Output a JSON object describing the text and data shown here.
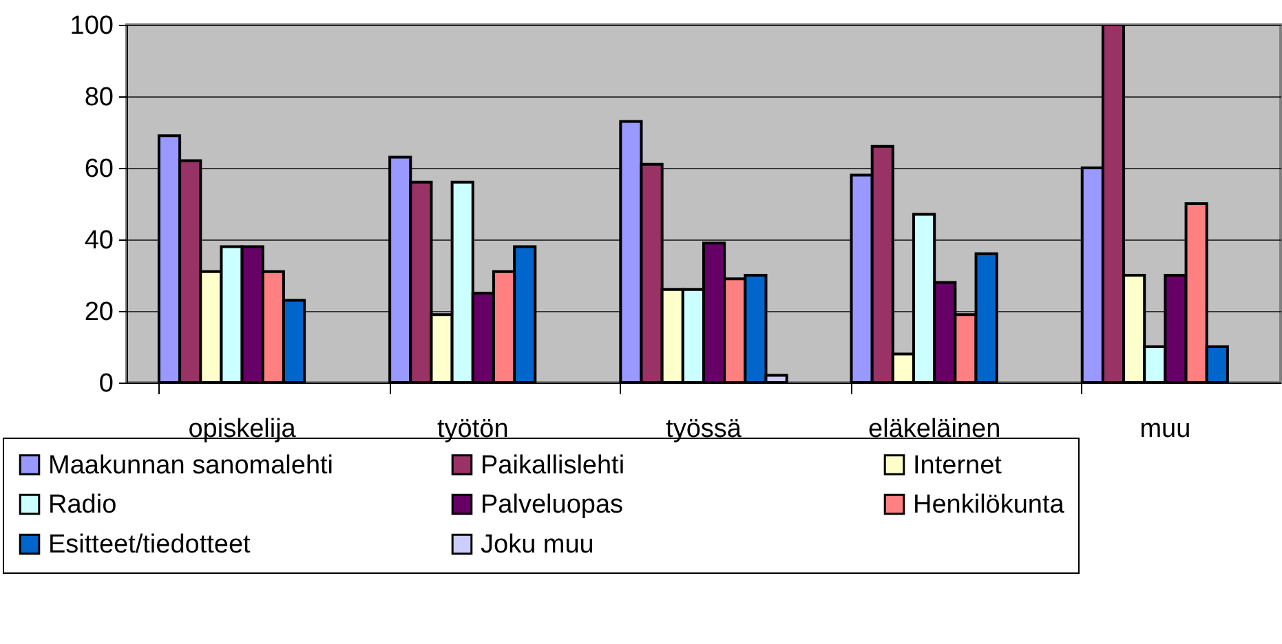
{
  "chart_data": {
    "type": "bar",
    "categories": [
      "opiskelija",
      "työtön",
      "työssä",
      "eläkeläinen",
      "muu"
    ],
    "series": [
      {
        "name": "Maakunnan sanomalehti",
        "color": "#9999ff",
        "values": [
          69,
          63,
          73,
          58,
          60
        ]
      },
      {
        "name": "Paikallislehti",
        "color": "#993366",
        "values": [
          62,
          56,
          61,
          66,
          100
        ]
      },
      {
        "name": "Internet",
        "color": "#ffffcc",
        "values": [
          31,
          19,
          26,
          8,
          30
        ]
      },
      {
        "name": "Radio",
        "color": "#ccffff",
        "values": [
          38,
          56,
          26,
          47,
          10
        ]
      },
      {
        "name": "Palveluopas",
        "color": "#660066",
        "values": [
          38,
          25,
          39,
          28,
          30
        ]
      },
      {
        "name": "Henkilökunta",
        "color": "#ff8080",
        "values": [
          31,
          31,
          29,
          19,
          50
        ]
      },
      {
        "name": "Esitteet/tiedotteet",
        "color": "#0066cc",
        "values": [
          23,
          38,
          30,
          36,
          10
        ]
      },
      {
        "name": "Joku muu",
        "color": "#ccccff",
        "values": [
          null,
          null,
          2,
          null,
          null
        ]
      }
    ],
    "ylim": [
      0,
      100
    ],
    "yticks": [
      0,
      20,
      40,
      60,
      80,
      100
    ],
    "grid": "y",
    "legend": "bottom"
  }
}
